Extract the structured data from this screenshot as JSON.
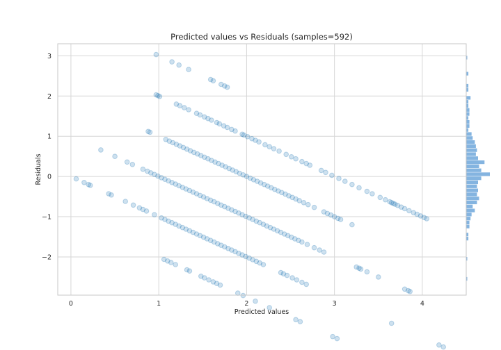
{
  "chart_data": {
    "type": "scatter",
    "title": "Predicted values vs Residuals (samples=592)",
    "xlabel": "Predicted values",
    "ylabel": "Residuals",
    "xlim": [
      -0.15,
      4.5
    ],
    "ylim": [
      -2.95,
      3.3
    ],
    "xticks": [
      0,
      1,
      2,
      3,
      4
    ],
    "yticks": [
      -2,
      -1,
      0,
      1,
      2,
      3
    ],
    "grid": true,
    "legend": "none",
    "color": "#1f77b4",
    "point_alpha": 0.25,
    "residual_bands": [
      {
        "offset": 4,
        "x": [
          0.97,
          1.15,
          1.23,
          1.34
        ]
      },
      {
        "offset": 4,
        "x": [
          1.59,
          1.62,
          1.71,
          1.75,
          1.78
        ]
      },
      {
        "offset": 3,
        "x": [
          0.97,
          0.99,
          1.01,
          1.2,
          1.24,
          1.29,
          1.34,
          1.43,
          1.47,
          1.52,
          1.56,
          1.6,
          1.66,
          1.69,
          1.74,
          1.78,
          1.83,
          1.87,
          1.95,
          1.97,
          2.01,
          2.06,
          2.1,
          2.14,
          2.21,
          2.26,
          2.31,
          2.37,
          2.45,
          2.51,
          2.56,
          2.63,
          2.68,
          2.72,
          2.85,
          2.9,
          2.97,
          3.05,
          3.12,
          3.2,
          3.28,
          3.37,
          3.43,
          3.52,
          3.58,
          3.63,
          3.65,
          3.67,
          3.69,
          3.72,
          3.76,
          3.8,
          3.85,
          3.9,
          3.94,
          3.98,
          4.02,
          4.05
        ]
      },
      {
        "offset": 2,
        "x": [
          0.88,
          0.9,
          1.08,
          1.12,
          1.16,
          1.2,
          1.24,
          1.28,
          1.32,
          1.36,
          1.4,
          1.44,
          1.48,
          1.52,
          1.56,
          1.6,
          1.64,
          1.68,
          1.72,
          1.76,
          1.8,
          1.84,
          1.88,
          1.92,
          1.96,
          2.0,
          2.04,
          2.08,
          2.12,
          2.16,
          2.2,
          2.24,
          2.28,
          2.32,
          2.36,
          2.4,
          2.44,
          2.48,
          2.52,
          2.56,
          2.6,
          2.65,
          2.7,
          2.77,
          2.88,
          2.92,
          2.96,
          3.0,
          3.04,
          3.07,
          3.2
        ]
      },
      {
        "offset": 1,
        "x": [
          0.34,
          0.5,
          0.64,
          0.7,
          0.82,
          0.87,
          0.91,
          0.95,
          0.99,
          1.03,
          1.07,
          1.11,
          1.15,
          1.19,
          1.23,
          1.27,
          1.31,
          1.35,
          1.39,
          1.43,
          1.47,
          1.51,
          1.55,
          1.59,
          1.63,
          1.67,
          1.71,
          1.75,
          1.79,
          1.83,
          1.87,
          1.91,
          1.95,
          1.99,
          2.03,
          2.07,
          2.11,
          2.15,
          2.19,
          2.23,
          2.27,
          2.31,
          2.35,
          2.39,
          2.43,
          2.47,
          2.51,
          2.55,
          2.59,
          2.63,
          2.69,
          2.77,
          2.83,
          2.88,
          3.25,
          3.28,
          3.3,
          3.37,
          3.5,
          3.8,
          3.84,
          3.86
        ]
      },
      {
        "offset": 0,
        "x": [
          0.06,
          0.15,
          0.2,
          0.22,
          0.43,
          0.46,
          0.62,
          0.71,
          0.78,
          0.82,
          0.86,
          0.95,
          1.03,
          1.07,
          1.11,
          1.15,
          1.19,
          1.23,
          1.27,
          1.31,
          1.35,
          1.39,
          1.43,
          1.47,
          1.51,
          1.55,
          1.59,
          1.63,
          1.67,
          1.71,
          1.75,
          1.79,
          1.83,
          1.87,
          1.91,
          1.95,
          1.99,
          2.03,
          2.07,
          2.11,
          2.15,
          2.19,
          2.39,
          2.42,
          2.46,
          2.52,
          2.57,
          2.63,
          2.68,
          3.65,
          4.19,
          4.24
        ]
      },
      {
        "offset": -1,
        "x": [
          1.06,
          1.1,
          1.14,
          1.19,
          1.32,
          1.35,
          1.48,
          1.52,
          1.57,
          1.62,
          1.66,
          1.7,
          2.56,
          2.61,
          3.5
        ]
      },
      {
        "offset": -1,
        "x": [
          1.9,
          1.96,
          2.1,
          2.26,
          2.98,
          3.03
        ]
      },
      {
        "offset": -2,
        "x": [
          2.58,
          2.65
        ]
      }
    ],
    "marginal_histogram": {
      "side": "right",
      "bins": [
        {
          "y": -2.55,
          "count": 1
        },
        {
          "y": -2.05,
          "count": 1
        },
        {
          "y": -1.55,
          "count": 2
        },
        {
          "y": -1.45,
          "count": 2
        },
        {
          "y": -1.25,
          "count": 3
        },
        {
          "y": -1.15,
          "count": 3
        },
        {
          "y": -1.05,
          "count": 4
        },
        {
          "y": -0.95,
          "count": 5
        },
        {
          "y": -0.85,
          "count": 8
        },
        {
          "y": -0.75,
          "count": 6
        },
        {
          "y": -0.65,
          "count": 10
        },
        {
          "y": -0.55,
          "count": 12
        },
        {
          "y": -0.45,
          "count": 10
        },
        {
          "y": -0.35,
          "count": 11
        },
        {
          "y": -0.25,
          "count": 10
        },
        {
          "y": -0.15,
          "count": 11
        },
        {
          "y": -0.05,
          "count": 14
        },
        {
          "y": 0.05,
          "count": 22
        },
        {
          "y": 0.15,
          "count": 14
        },
        {
          "y": 0.25,
          "count": 12
        },
        {
          "y": 0.35,
          "count": 17
        },
        {
          "y": 0.45,
          "count": 11
        },
        {
          "y": 0.55,
          "count": 9
        },
        {
          "y": 0.65,
          "count": 10
        },
        {
          "y": 0.75,
          "count": 9
        },
        {
          "y": 0.85,
          "count": 8
        },
        {
          "y": 0.95,
          "count": 6
        },
        {
          "y": 1.05,
          "count": 5
        },
        {
          "y": 1.15,
          "count": 2
        },
        {
          "y": 1.25,
          "count": 3
        },
        {
          "y": 1.35,
          "count": 3
        },
        {
          "y": 1.45,
          "count": 2
        },
        {
          "y": 1.55,
          "count": 3
        },
        {
          "y": 1.65,
          "count": 3
        },
        {
          "y": 1.75,
          "count": 2
        },
        {
          "y": 1.85,
          "count": 2
        },
        {
          "y": 1.95,
          "count": 4
        },
        {
          "y": 2.15,
          "count": 2
        },
        {
          "y": 2.25,
          "count": 2
        },
        {
          "y": 2.55,
          "count": 2
        },
        {
          "y": 2.95,
          "count": 1
        }
      ]
    }
  }
}
